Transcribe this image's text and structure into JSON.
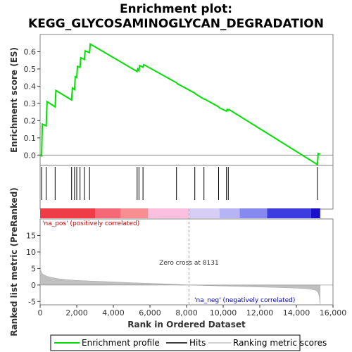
{
  "chart_data": {
    "type": "line",
    "title_line1": "Enrichment plot:",
    "title_line2": "KEGG_GLYCOSAMINOGLYCAN_DEGRADATION",
    "es_panel": {
      "ylabel": "Enrichment score (ES)",
      "ylim": [
        -0.06,
        0.7
      ],
      "yticks": [
        0.0,
        0.1,
        0.2,
        0.3,
        0.4,
        0.5,
        0.6
      ],
      "ytick_labels": [
        "0.0",
        "0.1",
        "0.2",
        "0.3",
        "0.4",
        "0.5",
        "0.6"
      ],
      "series": [
        {
          "name": "Enrichment profile",
          "color": "#00e000",
          "x": [
            0,
            80,
            120,
            330,
            380,
            820,
            860,
            1720,
            1760,
            1880,
            1920,
            2000,
            2040,
            2180,
            2220,
            2420,
            2460,
            2700,
            2740,
            5300,
            5340,
            5400,
            5440,
            5620,
            5660,
            7450,
            7490,
            8450,
            8490,
            8950,
            8990,
            9750,
            9790,
            10180,
            10220,
            10280,
            10320,
            15150,
            15190,
            15300
          ],
          "y": [
            0.0,
            -0.005,
            0.18,
            0.17,
            0.31,
            0.28,
            0.375,
            0.32,
            0.39,
            0.38,
            0.455,
            0.45,
            0.515,
            0.51,
            0.565,
            0.555,
            0.605,
            0.595,
            0.645,
            0.485,
            0.5,
            0.49,
            0.52,
            0.51,
            0.525,
            0.42,
            0.415,
            0.36,
            0.355,
            0.325,
            0.325,
            0.28,
            0.275,
            0.255,
            0.265,
            0.26,
            0.265,
            -0.055,
            0.01,
            0.005
          ]
        }
      ]
    },
    "hits_panel": {
      "hit_positions": [
        80,
        330,
        820,
        1720,
        1880,
        2000,
        2180,
        2420,
        2700,
        5300,
        5400,
        5620,
        7450,
        8450,
        8950,
        9750,
        10180,
        10280,
        15150
      ],
      "color_bar": [
        {
          "from": 0,
          "to": 3000,
          "color": "#ee3d47"
        },
        {
          "from": 3000,
          "to": 4400,
          "color": "#f46878"
        },
        {
          "from": 4400,
          "to": 5900,
          "color": "#f88e92"
        },
        {
          "from": 5900,
          "to": 8131,
          "color": "#fbc0e0"
        },
        {
          "from": 8131,
          "to": 9800,
          "color": "#d6cef4"
        },
        {
          "from": 9800,
          "to": 10900,
          "color": "#b6b4f2"
        },
        {
          "from": 10900,
          "to": 12400,
          "color": "#8689ee"
        },
        {
          "from": 12400,
          "to": 14800,
          "color": "#3d3ce0"
        },
        {
          "from": 14800,
          "to": 15300,
          "color": "#1a10c8"
        }
      ]
    },
    "metric_panel": {
      "ylabel": "Ranked list metric (PreRanked)",
      "ylim": [
        -6,
        20
      ],
      "yticks": [
        -5,
        0,
        5,
        10,
        15
      ],
      "ytick_labels": [
        "-5",
        "0",
        "5",
        "10",
        "15"
      ],
      "profile_x": [
        0,
        5,
        20,
        50,
        100,
        200,
        400,
        700,
        1000,
        1500,
        2000,
        3000,
        4000,
        5000,
        6000,
        7000,
        8131,
        9000,
        10000,
        11000,
        12000,
        13000,
        14000,
        14500,
        14800,
        15000,
        15100,
        15200,
        15250,
        15300
      ],
      "profile_y": [
        9.0,
        6.5,
        5.0,
        4.2,
        3.6,
        3.1,
        2.6,
        2.2,
        1.9,
        1.6,
        1.4,
        1.15,
        0.95,
        0.7,
        0.5,
        0.3,
        0.0,
        -0.15,
        -0.3,
        -0.45,
        -0.6,
        -0.75,
        -0.95,
        -1.1,
        -1.3,
        -1.5,
        -1.8,
        -2.4,
        -3.5,
        -5.8
      ]
    },
    "xlabel": "Rank in Ordered Dataset",
    "xlim": [
      0,
      16000
    ],
    "xticks": [
      0,
      2000,
      4000,
      6000,
      8000,
      10000,
      12000,
      14000,
      16000
    ],
    "xtick_labels": [
      "0",
      "2,000",
      "4,000",
      "6,000",
      "8,000",
      "10,000",
      "12,000",
      "14,000",
      "16,000"
    ],
    "zero_cross_x": 8131,
    "annotations": {
      "pos_label": "'na_pos' (positively correlated)",
      "neg_label": "'na_neg' (negatively correlated)",
      "zero_cross_label": "Zero cross at 8131",
      "pos_color": "#cc0000",
      "neg_color": "#0000cc"
    },
    "legend": [
      {
        "label": "Enrichment profile",
        "color": "#00e000"
      },
      {
        "label": "Hits",
        "color": "#000000"
      },
      {
        "label": "Ranking metric scores",
        "color": "#c0c0c0"
      }
    ]
  }
}
